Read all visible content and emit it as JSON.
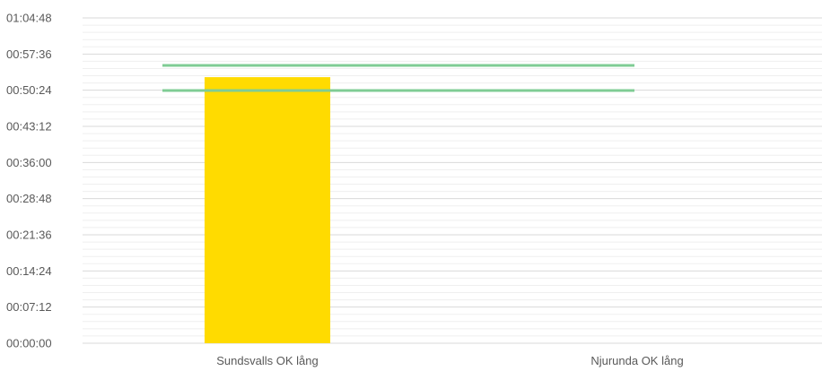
{
  "chart_data": {
    "type": "bar",
    "categories": [
      "Sundsvalls OK lång",
      "Njurunda OK lång"
    ],
    "series": [
      {
        "values": [
          "00:53:00",
          null
        ]
      }
    ],
    "reference_lines": [
      {
        "value": "00:55:20",
        "from": "Sundsvalls OK lång",
        "to": "Njurunda OK lång"
      },
      {
        "value": "00:50:20",
        "from": "Sundsvalls OK lång",
        "to": "Njurunda OK lång"
      }
    ],
    "y_ticks": [
      "00:00:00",
      "00:07:12",
      "00:14:24",
      "00:21:36",
      "00:28:48",
      "00:36:00",
      "00:43:12",
      "00:50:24",
      "00:57:36",
      "01:04:48"
    ],
    "ylim": [
      "00:00:00",
      "01:04:48"
    ],
    "grid": true,
    "minor_grid": true,
    "legend": "none",
    "colors": {
      "bar": "#FFDB00",
      "reference_line": "#7FCC94",
      "major_grid": "#D9D9D9",
      "minor_grid": "#EFEFEF",
      "text": "#595959"
    }
  }
}
